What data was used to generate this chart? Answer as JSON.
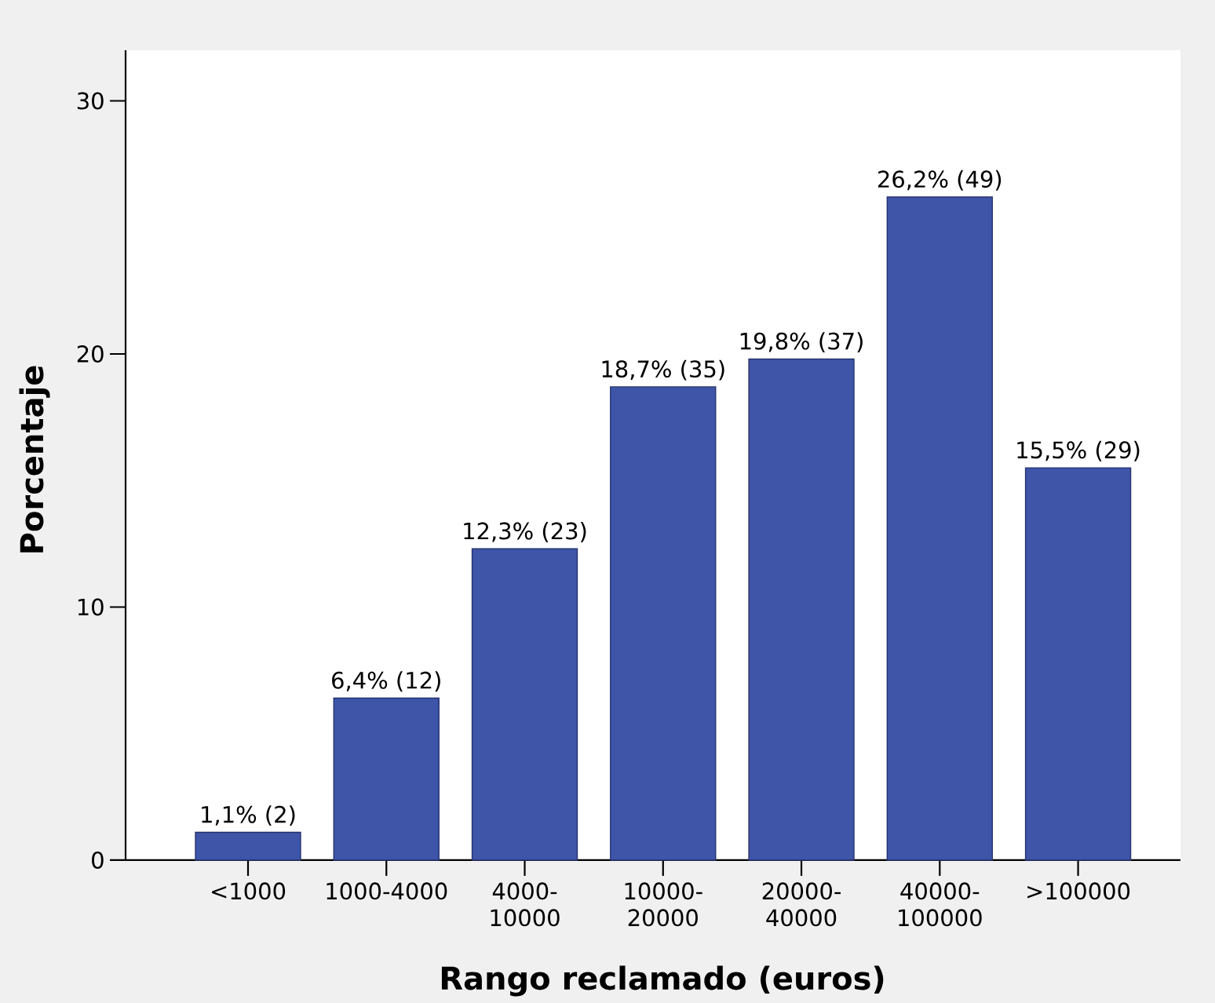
{
  "chart_data": {
    "type": "bar",
    "categories": [
      "<1000",
      "1000-4000",
      "4000-10000",
      "10000-20000",
      "20000-40000",
      "40000-100000",
      ">100000"
    ],
    "values": [
      1.1,
      6.4,
      12.3,
      18.7,
      19.8,
      26.2,
      15.5
    ],
    "value_labels": [
      "1,1% (2)",
      "6,4% (12)",
      "12,3% (23)",
      "18,7% (35)",
      "19,8% (37)",
      "26,2% (49)",
      "15,5% (29)"
    ],
    "color": "#3e55a8",
    "xlabel": "Rango reclamado (euros)",
    "ylabel": "Porcentaje",
    "ylim": [
      0,
      32
    ],
    "yticks": [
      0,
      10,
      20,
      30
    ]
  }
}
